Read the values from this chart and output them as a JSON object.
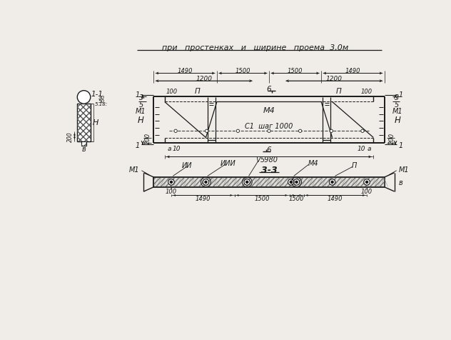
{
  "bg_color": "#f0ede8",
  "line_color": "#1a1a1a",
  "title_text": "при   простенках   и   ширине   проема  3,0м",
  "section_label_11": "1-1",
  "section_label_33": "3-3",
  "dim_1200_left": "1200",
  "dim_1200_right": "1200",
  "dim_1490_left": "1490",
  "dim_1500_left": "1500",
  "dim_1500_right": "1500",
  "dim_1490_right": "1490",
  "dim_5980": "5980",
  "label_3": "3",
  "label_5": "5",
  "label_M1": "М1",
  "label_M4": "М4",
  "label_T1": "С1  шаг 1000",
  "label_H": "Н",
  "label_6": "6",
  "label_PI": "П",
  "label_100": "100",
  "label_10": "10",
  "label_a": "а",
  "label_200": "200",
  "label_B": "в",
  "label_II": "ИИ",
  "label_III": "ИИИ",
  "label_V": "V",
  "label_M4_sec": "М4",
  "label_PI_sec": "П",
  "label_M1_sec": "М1",
  "label_100_sec": "100",
  "dim_1490_sec": "1490",
  "dim_1500_sec": "1500"
}
